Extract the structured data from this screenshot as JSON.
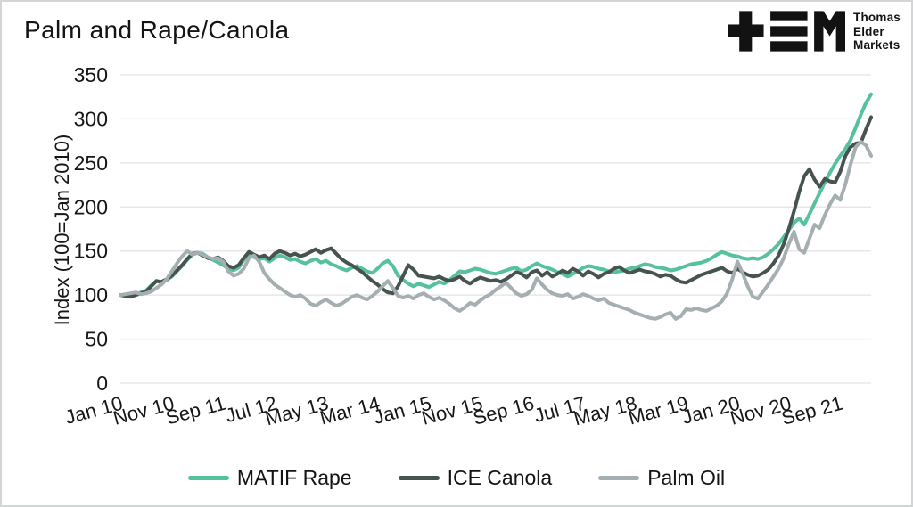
{
  "title": "Palm and Rape/Canola",
  "logo": {
    "name": "Thomas Elder Markets",
    "lines": [
      "Thomas",
      "Elder",
      "Markets"
    ]
  },
  "colors": {
    "matif_rape": "#56C19F",
    "ice_canola": "#46534F",
    "palm_oil": "#A5AEB1",
    "gridline": "#e3e3e3",
    "text": "#161616"
  },
  "chart_data": {
    "type": "line",
    "title": "Palm and Rape/Canola",
    "xlabel": "",
    "ylabel": "Index (100=Jan 2010)",
    "ylim": [
      0,
      350
    ],
    "y_ticks": [
      0,
      50,
      100,
      150,
      200,
      250,
      300,
      350
    ],
    "grid": "horizontal",
    "legend_position": "bottom",
    "x_unit": "month",
    "x_start": "Jan 2010",
    "x_end": "Mar 2022",
    "x_tick_labels": [
      "Jan 10",
      "Nov 10",
      "Sep 11",
      "Jul 12",
      "May 13",
      "Mar 14",
      "Jan 15",
      "Nov 15",
      "Sep 16",
      "Jul 17",
      "May 18",
      "Mar 19",
      "Jan 20",
      "Nov 20",
      "Sep 21"
    ],
    "x_tick_months": [
      0,
      10,
      20,
      30,
      40,
      50,
      60,
      70,
      80,
      90,
      100,
      110,
      120,
      130,
      140
    ],
    "series": [
      {
        "name": "MATIF Rape",
        "color": "#56C19F",
        "values": [
          100,
          100,
          99,
          101,
          103,
          105,
          111,
          116,
          114,
          117,
          121,
          127,
          133,
          140,
          146,
          148,
          147,
          143,
          140,
          137,
          134,
          130,
          128,
          131,
          140,
          146,
          143,
          141,
          142,
          138,
          142,
          145,
          143,
          140,
          141,
          138,
          136,
          139,
          141,
          137,
          139,
          135,
          133,
          130,
          128,
          131,
          133,
          130,
          127,
          125,
          130,
          136,
          139,
          133,
          122,
          117,
          113,
          110,
          113,
          111,
          109,
          112,
          115,
          113,
          117,
          122,
          127,
          126,
          128,
          130,
          129,
          127,
          125,
          124,
          126,
          128,
          130,
          131,
          127,
          129,
          133,
          136,
          133,
          131,
          129,
          126,
          124,
          121,
          124,
          127,
          131,
          133,
          132,
          130,
          129,
          127,
          126,
          127,
          128,
          130,
          131,
          133,
          135,
          134,
          132,
          131,
          130,
          128,
          129,
          131,
          133,
          135,
          136,
          137,
          139,
          142,
          146,
          149,
          147,
          145,
          144,
          142,
          141,
          142,
          141,
          143,
          147,
          152,
          158,
          166,
          174,
          182,
          187,
          180,
          192,
          204,
          216,
          228,
          239,
          249,
          258,
          266,
          276,
          290,
          305,
          318,
          328
        ]
      },
      {
        "name": "ICE Canola",
        "color": "#46534F",
        "values": [
          100,
          99,
          98,
          100,
          102,
          104,
          110,
          116,
          115,
          118,
          122,
          128,
          134,
          141,
          147,
          148,
          145,
          142,
          141,
          143,
          139,
          133,
          131,
          134,
          142,
          149,
          146,
          143,
          145,
          141,
          147,
          150,
          148,
          145,
          147,
          144,
          146,
          149,
          152,
          148,
          151,
          153,
          147,
          141,
          137,
          134,
          130,
          126,
          121,
          116,
          112,
          107,
          103,
          102,
          110,
          122,
          134,
          129,
          122,
          121,
          120,
          119,
          121,
          118,
          116,
          118,
          121,
          116,
          113,
          117,
          120,
          118,
          116,
          117,
          115,
          118,
          122,
          126,
          124,
          120,
          126,
          128,
          122,
          126,
          121,
          124,
          128,
          125,
          130,
          127,
          122,
          127,
          124,
          120,
          124,
          126,
          130,
          132,
          128,
          125,
          127,
          129,
          127,
          126,
          124,
          121,
          123,
          122,
          118,
          115,
          114,
          117,
          120,
          123,
          125,
          127,
          129,
          131,
          127,
          125,
          130,
          126,
          123,
          121,
          122,
          125,
          129,
          136,
          145,
          158,
          175,
          195,
          217,
          235,
          243,
          231,
          223,
          232,
          229,
          228,
          240,
          258,
          268,
          272,
          273,
          288,
          302
        ]
      },
      {
        "name": "Palm Oil",
        "color": "#A5AEB1",
        "values": [
          100,
          101,
          102,
          103,
          101,
          102,
          104,
          108,
          112,
          118,
          127,
          136,
          144,
          150,
          146,
          148,
          146,
          143,
          141,
          142,
          138,
          127,
          122,
          124,
          130,
          142,
          145,
          138,
          125,
          118,
          112,
          108,
          104,
          100,
          98,
          100,
          96,
          90,
          88,
          92,
          95,
          91,
          88,
          90,
          94,
          98,
          100,
          97,
          95,
          99,
          104,
          110,
          116,
          108,
          99,
          97,
          99,
          96,
          100,
          102,
          98,
          95,
          97,
          94,
          90,
          85,
          82,
          86,
          91,
          89,
          94,
          98,
          101,
          106,
          110,
          114,
          108,
          102,
          99,
          101,
          106,
          119,
          112,
          106,
          102,
          100,
          99,
          101,
          96,
          98,
          101,
          99,
          96,
          94,
          96,
          91,
          89,
          87,
          85,
          83,
          80,
          78,
          76,
          74,
          73,
          75,
          78,
          80,
          73,
          76,
          84,
          83,
          85,
          83,
          82,
          85,
          88,
          93,
          102,
          118,
          138,
          125,
          110,
          98,
          96,
          104,
          112,
          121,
          130,
          142,
          158,
          172,
          152,
          148,
          164,
          180,
          176,
          191,
          203,
          213,
          208,
          226,
          248,
          268,
          274,
          270,
          258
        ]
      }
    ]
  }
}
